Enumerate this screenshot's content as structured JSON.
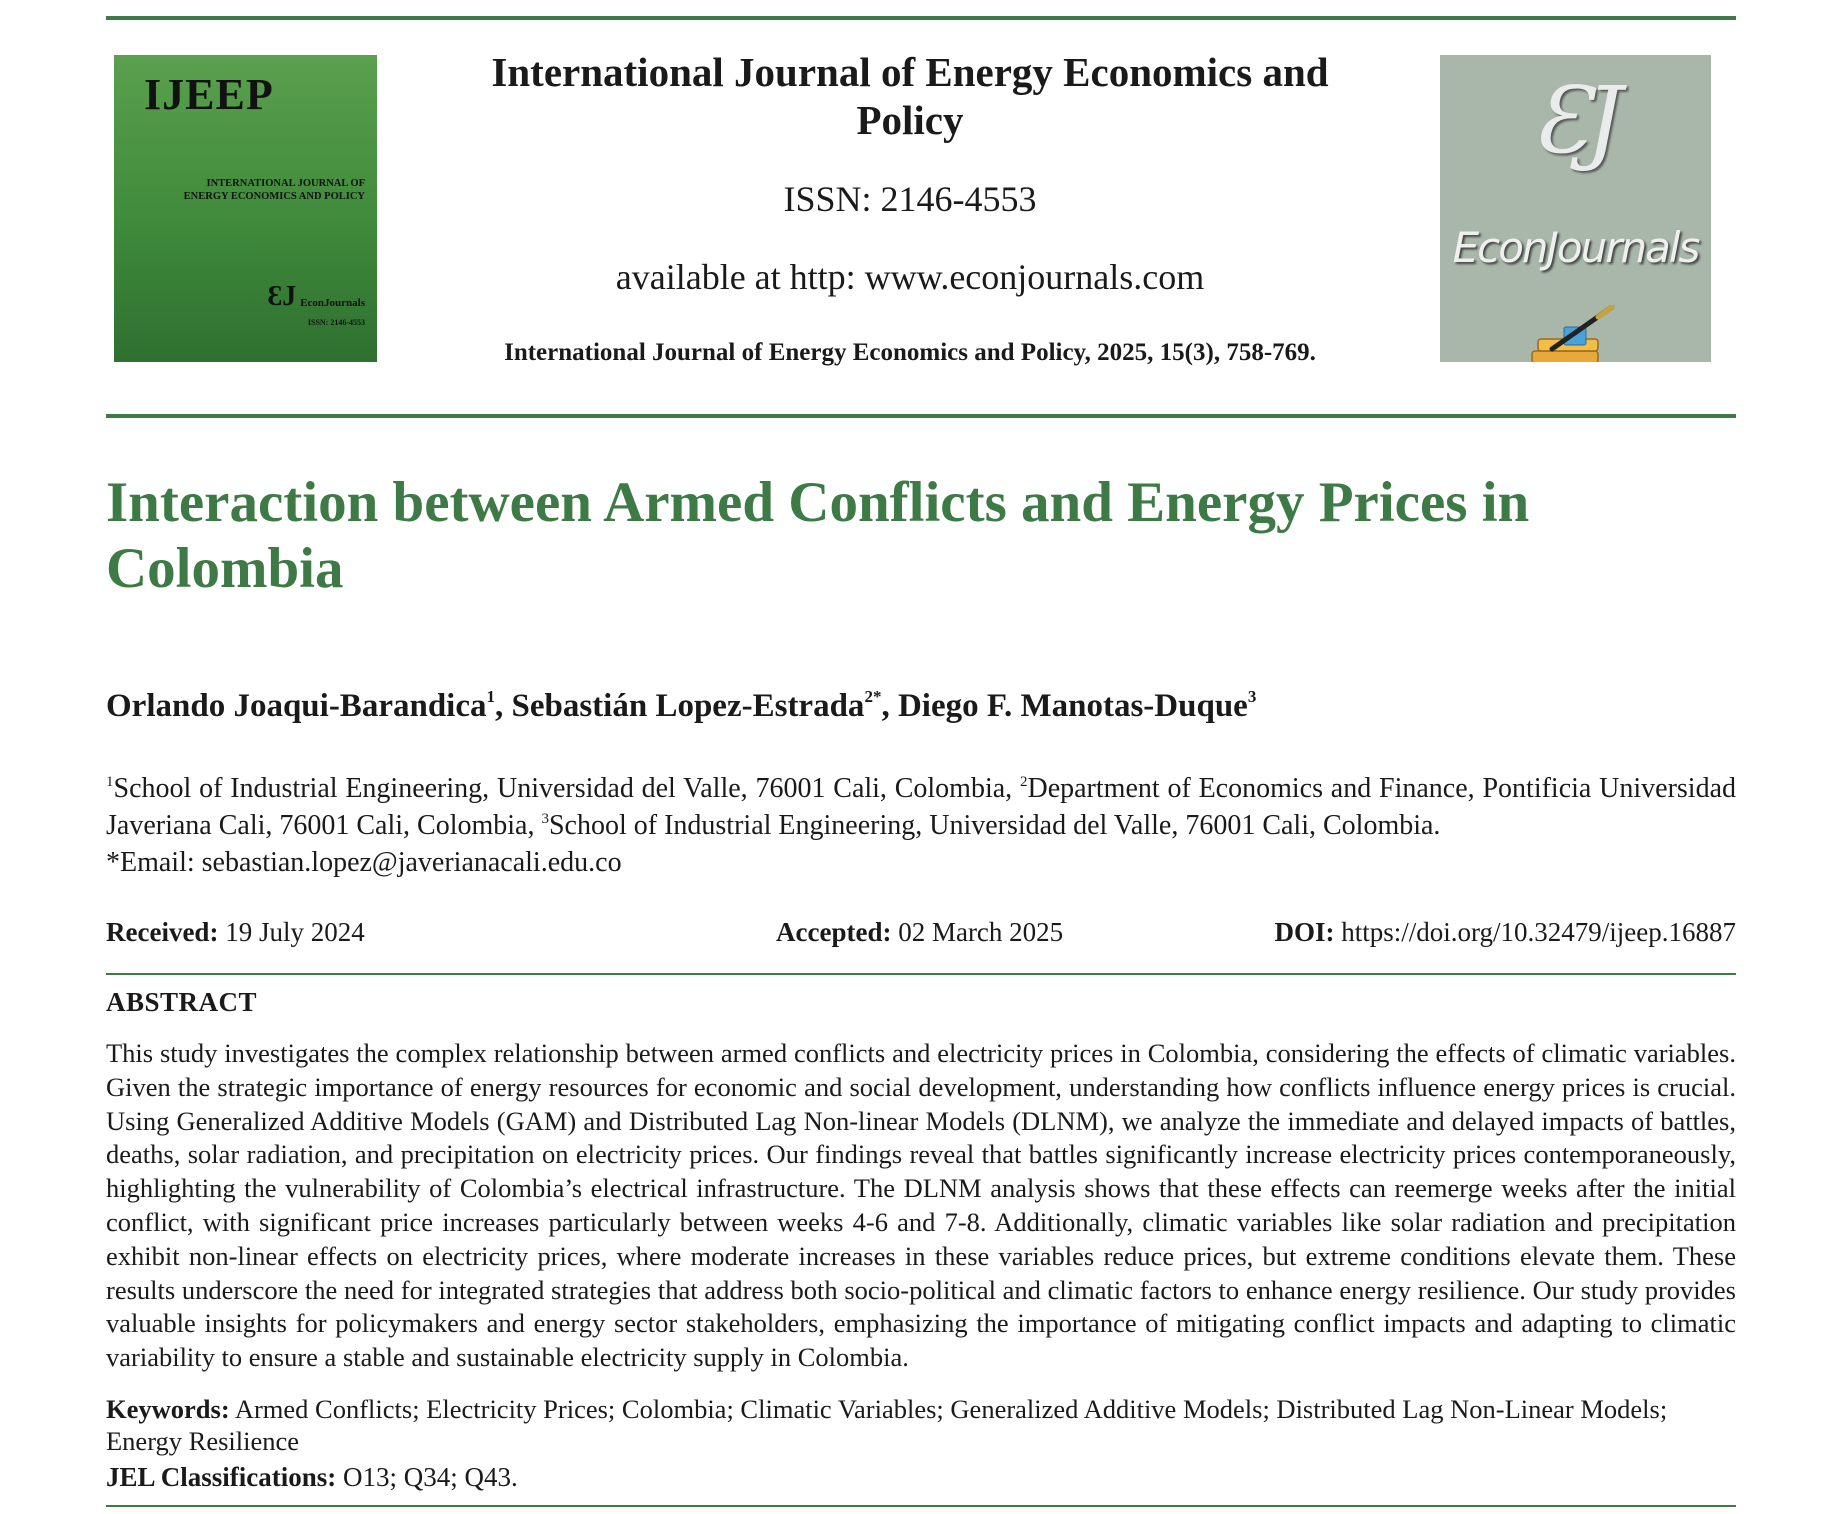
{
  "header": {
    "cover": {
      "abbr": "IJEEP",
      "full_title_line1": "INTERNATIONAL JOURNAL OF",
      "full_title_line2": "ENERGY ECONOMICS AND POLICY",
      "logo_mark": "ƐJ",
      "logo_text": "EconJournals",
      "issn": "ISSN: 2146-4553"
    },
    "journal_title": "International Journal of Energy Economics and Policy",
    "issn": "ISSN: 2146-4553",
    "availability": "available at http: www.econjournals.com",
    "citation": "International Journal of Energy Economics and Policy, 2025, 15(3), 758-769.",
    "publisher_logo": {
      "mark": "ƐJ",
      "text": "EconJournals",
      "icon": "books-with-pen-icon",
      "background": "#a9b7ab"
    }
  },
  "article": {
    "title": "Interaction between Armed Conflicts and Energy Prices in Colombia",
    "title_color": "#3e7a46",
    "authors": [
      {
        "name": "Orlando Joaqui-Barandica",
        "sup": "1",
        "sep": ", "
      },
      {
        "name": "Sebastián Lopez-Estrada",
        "sup": "2*",
        "sep": ", "
      },
      {
        "name": "Diego F. Manotas-Duque",
        "sup": "3",
        "sep": ""
      }
    ],
    "affiliations": {
      "aff1_sup": "1",
      "aff1": "School of Industrial Engineering, Universidad del Valle, 76001 Cali, Colombia, ",
      "aff2_sup": "2",
      "aff2": "Department of Economics and Finance, Pontificia Universidad Javeriana Cali, 76001 Cali, Colombia, ",
      "aff3_sup": "3",
      "aff3": "School of Industrial Engineering, Universidad del Valle, 76001 Cali, Colombia.",
      "email": "*Email: sebastian.lopez@javerianacali.edu.co"
    },
    "dates": {
      "received_label": "Received:",
      "received_value": " 19 July 2024",
      "accepted_label": "Accepted:",
      "accepted_value": " 02 March 2025",
      "doi_label": "DOI:",
      "doi_value": " https://doi.org/10.32479/ijeep.16887"
    },
    "abstract_heading": "ABSTRACT",
    "abstract": "This study investigates the complex relationship between armed conflicts and electricity prices in Colombia, considering the effects of climatic variables. Given the strategic importance of energy resources for economic and social development, understanding how conflicts influence energy prices is crucial. Using Generalized Additive Models (GAM) and Distributed Lag Non-linear Models (DLNM), we analyze the immediate and delayed impacts of battles, deaths, solar radiation, and precipitation on electricity prices. Our findings reveal that battles significantly increase electricity prices contemporaneously, highlighting the vulnerability of Colombia’s electrical infrastructure. The DLNM analysis shows that these effects can reemerge weeks after the initial conflict, with significant price increases particularly between weeks 4-6 and 7-8. Additionally, climatic variables like solar radiation and precipitation exhibit non-linear effects on electricity prices, where moderate increases in these variables reduce prices, but extreme conditions elevate them. These results underscore the need for integrated strategies that address both socio-political and climatic factors to enhance energy resilience. Our study provides valuable insights for policymakers and energy sector stakeholders, emphasizing the importance of mitigating conflict impacts and adapting to climatic variability to ensure a stable and sustainable electricity supply in Colombia.",
    "keywords_label": "Keywords:",
    "keywords": " Armed Conflicts; Electricity Prices; Colombia; Climatic Variables; Generalized Additive Models; Distributed Lag Non-Linear Models; Energy Resilience",
    "jel_label": "JEL Classifications:",
    "jel": " O13; Q34; Q43."
  },
  "colors": {
    "accent_green": "#3e7a46",
    "cover_green": "#4a9344"
  }
}
